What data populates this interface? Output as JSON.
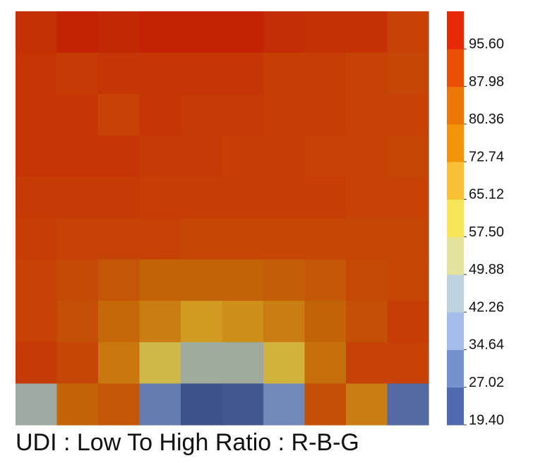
{
  "chart_data": {
    "type": "heatmap",
    "title": "UDI : Low To High Ratio : R-B-G",
    "rows": 10,
    "cols": 10,
    "values": [
      [
        94,
        97,
        96,
        97,
        97,
        97,
        95,
        94,
        94,
        90
      ],
      [
        93,
        92,
        93,
        93,
        93,
        93,
        91,
        91,
        90,
        89
      ],
      [
        93,
        93,
        90,
        93,
        92,
        92,
        91,
        91,
        90,
        90
      ],
      [
        93,
        93,
        93,
        92,
        92,
        91,
        91,
        90,
        90,
        89
      ],
      [
        92,
        92,
        92,
        91,
        91,
        91,
        91,
        91,
        90,
        90
      ],
      [
        91,
        90,
        90,
        90,
        89,
        89,
        89,
        89,
        89,
        89
      ],
      [
        90,
        88,
        86,
        84,
        84,
        84,
        85,
        86,
        88,
        89
      ],
      [
        90,
        87,
        83,
        79,
        74,
        76,
        79,
        84,
        87,
        91
      ],
      [
        92,
        89,
        80,
        62,
        46,
        46,
        65,
        82,
        90,
        90
      ],
      [
        45,
        84,
        86,
        29,
        20,
        21,
        32,
        87,
        79,
        25
      ]
    ],
    "colorbar": {
      "ticks": [
        "95.60",
        "87.98",
        "80.36",
        "72.74",
        "65.12",
        "57.50",
        "49.88",
        "42.26",
        "34.64",
        "27.02",
        "19.40"
      ],
      "bands": [
        {
          "min": 19.4,
          "max": 27.02,
          "color": "#4f6bae"
        },
        {
          "min": 27.02,
          "max": 34.64,
          "color": "#7491cd"
        },
        {
          "min": 34.64,
          "max": 42.26,
          "color": "#a5bdea"
        },
        {
          "min": 42.26,
          "max": 49.88,
          "color": "#bed3de"
        },
        {
          "min": 49.88,
          "max": 57.5,
          "color": "#e3e39d"
        },
        {
          "min": 57.5,
          "max": 65.12,
          "color": "#f7e65a"
        },
        {
          "min": 65.12,
          "max": 72.74,
          "color": "#f6c136"
        },
        {
          "min": 72.74,
          "max": 80.36,
          "color": "#f2940a"
        },
        {
          "min": 80.36,
          "max": 87.98,
          "color": "#ec7608"
        },
        {
          "min": 87.98,
          "max": 95.6,
          "color": "#e94f05"
        },
        {
          "min": 95.6,
          "max": 103.22,
          "color": "#e62a05"
        }
      ]
    }
  }
}
